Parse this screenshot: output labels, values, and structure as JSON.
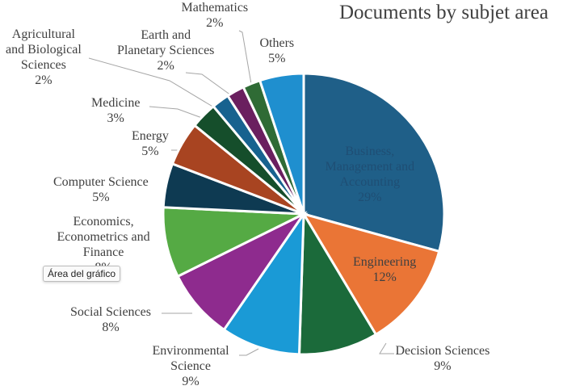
{
  "chart_data": {
    "type": "pie",
    "title": "Documents by subjet area",
    "slices": [
      {
        "name_lines": [
          "Business,",
          "Management and",
          "Accounting"
        ],
        "pct_label": "29%",
        "value": 29,
        "color": "#1f5f88",
        "label_color": "#1f4e74"
      },
      {
        "name_lines": [
          "Engineering"
        ],
        "pct_label": "12%",
        "value": 12,
        "color": "#ea7536",
        "label_color": "#404040"
      },
      {
        "name_lines": [
          "Decision Sciences"
        ],
        "pct_label": "9%",
        "value": 9,
        "color": "#1b6a3a",
        "label_color": "#404040"
      },
      {
        "name_lines": [
          "Environmental",
          "Science"
        ],
        "pct_label": "9%",
        "value": 9,
        "color": "#1a9ad6",
        "label_color": "#404040"
      },
      {
        "name_lines": [
          "Social Sciences"
        ],
        "pct_label": "8%",
        "value": 8,
        "color": "#8e2b8e",
        "label_color": "#404040"
      },
      {
        "name_lines": [
          "Economics,",
          "Econometrics and",
          "Finance"
        ],
        "pct_label": "8%",
        "value": 8,
        "color": "#55aa44",
        "label_color": "#404040"
      },
      {
        "name_lines": [
          "Computer Science"
        ],
        "pct_label": "5%",
        "value": 5,
        "color": "#0e3a52",
        "label_color": "#404040"
      },
      {
        "name_lines": [
          "Energy"
        ],
        "pct_label": "5%",
        "value": 5,
        "color": "#a84421",
        "label_color": "#404040"
      },
      {
        "name_lines": [
          "Medicine"
        ],
        "pct_label": "3%",
        "value": 3,
        "color": "#154e2b",
        "label_color": "#404040"
      },
      {
        "name_lines": [
          "Agricultural",
          "and Biological",
          "Sciences"
        ],
        "pct_label": "2%",
        "value": 2,
        "color": "#17628f",
        "label_color": "#404040"
      },
      {
        "name_lines": [
          "Earth and",
          "Planetary Sciences"
        ],
        "pct_label": "2%",
        "value": 2,
        "color": "#6a1f5f",
        "label_color": "#404040"
      },
      {
        "name_lines": [
          "Mathematics"
        ],
        "pct_label": "2%",
        "value": 2,
        "color": "#2f6b35",
        "label_color": "#404040"
      },
      {
        "name_lines": [
          "Others"
        ],
        "pct_label": "5%",
        "value": 5,
        "color": "#1f8fcf",
        "label_color": "#404040"
      }
    ],
    "legend": "none"
  },
  "tooltip": {
    "text": "Área del gráfico"
  }
}
